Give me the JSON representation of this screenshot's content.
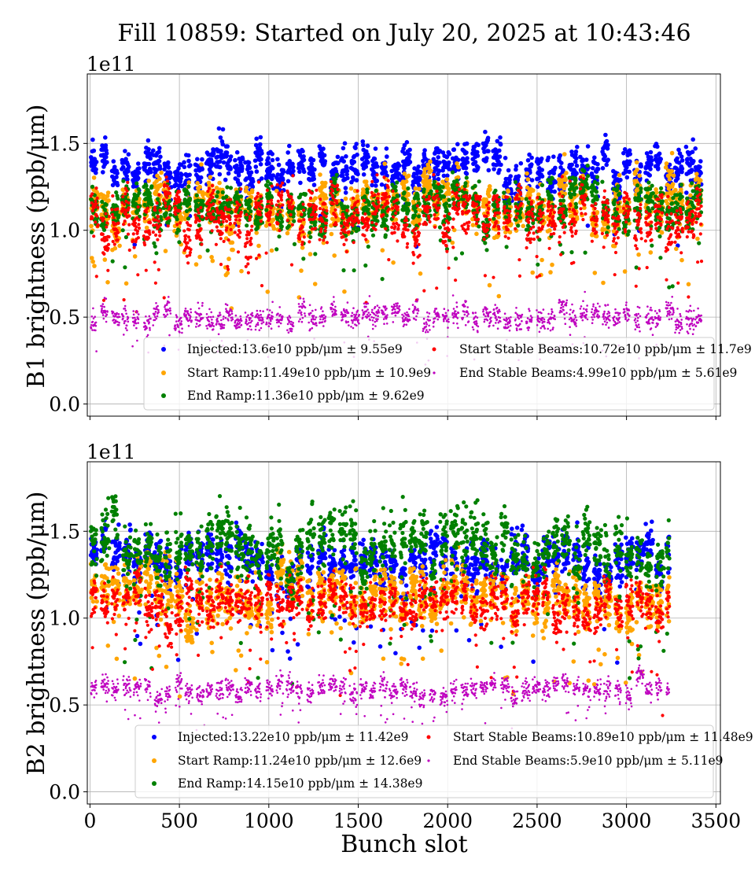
{
  "title": "Fill 10859: Started on July 20, 2025 at 10:43:46",
  "colors": {
    "Injected": "#0000ff",
    "Start Ramp": "#ffa500",
    "End Ramp": "#008000",
    "Start Stable Beams": "#ff0000",
    "End Stable Beams": "#bf00bf",
    "grid": "#b0b0b0"
  },
  "chart_data": [
    {
      "type": "scatter",
      "ylabel": "B1 brightness (ppb/μm)",
      "xlabel": "",
      "offset_label": "1e11",
      "xlim": [
        -15,
        3525
      ],
      "ylim": [
        -0.07,
        1.9
      ],
      "y_scale": 100000000000.0,
      "x_ticks": [
        0,
        500,
        1000,
        1500,
        2000,
        2500,
        3000,
        3500
      ],
      "x_tick_labels": [
        "",
        "",
        "",
        "",
        "",
        "",
        "",
        ""
      ],
      "y_ticks": [
        0.0,
        0.5,
        1.0,
        1.5
      ],
      "y_tick_labels": [
        "0.0",
        "0.5",
        "1.0",
        "1.5"
      ],
      "grid": true,
      "legend_location": "lower-center",
      "x_max_slot": 3420,
      "series": [
        {
          "name": "Injected",
          "legend": "Injected:13.6e10 ppb/μm ± 9.55e9",
          "mean": 1.36,
          "std": 0.0955
        },
        {
          "name": "Start Ramp",
          "legend": "Start Ramp:11.49e10 ppb/μm ± 10.9e9",
          "mean": 1.149,
          "std": 0.109
        },
        {
          "name": "End Ramp",
          "legend": "End Ramp:11.36e10 ppb/μm ± 9.62e9",
          "mean": 1.136,
          "std": 0.0962
        },
        {
          "name": "Start Stable Beams",
          "legend": "Start Stable Beams:10.72e10 ppb/μm ± 11.7e9",
          "mean": 1.072,
          "std": 0.117
        },
        {
          "name": "End Stable Beams",
          "legend": "End Stable Beams:4.99e10 ppb/μm ± 5.61e9",
          "mean": 0.499,
          "std": 0.0561
        }
      ]
    },
    {
      "type": "scatter",
      "ylabel": "B2 brightness (ppb/μm)",
      "xlabel": "Bunch slot",
      "offset_label": "1e11",
      "xlim": [
        -15,
        3525
      ],
      "ylim": [
        -0.07,
        1.9
      ],
      "y_scale": 100000000000.0,
      "x_ticks": [
        0,
        500,
        1000,
        1500,
        2000,
        2500,
        3000,
        3500
      ],
      "x_tick_labels": [
        "0",
        "500",
        "1000",
        "1500",
        "2000",
        "2500",
        "3000",
        "3500"
      ],
      "y_ticks": [
        0.0,
        0.5,
        1.0,
        1.5
      ],
      "y_tick_labels": [
        "0.0",
        "0.5",
        "1.0",
        "1.5"
      ],
      "grid": true,
      "legend_location": "lower-center",
      "x_max_slot": 3240,
      "series": [
        {
          "name": "Injected",
          "legend": "Injected:13.22e10 ppb/μm ± 11.42e9",
          "mean": 1.322,
          "std": 0.1142
        },
        {
          "name": "Start Ramp",
          "legend": "Start Ramp:11.24e10 ppb/μm ± 12.6e9",
          "mean": 1.124,
          "std": 0.126
        },
        {
          "name": "End Ramp",
          "legend": "End Ramp:14.15e10 ppb/μm ± 14.38e9",
          "mean": 1.415,
          "std": 0.1438
        },
        {
          "name": "Start Stable Beams",
          "legend": "Start Stable Beams:10.89e10 ppb/μm ± 11.48e9",
          "mean": 1.089,
          "std": 0.1148
        },
        {
          "name": "End Stable Beams",
          "legend": "End Stable Beams:5.9e10 ppb/μm ± 5.11e9",
          "mean": 0.59,
          "std": 0.0511
        }
      ]
    }
  ]
}
